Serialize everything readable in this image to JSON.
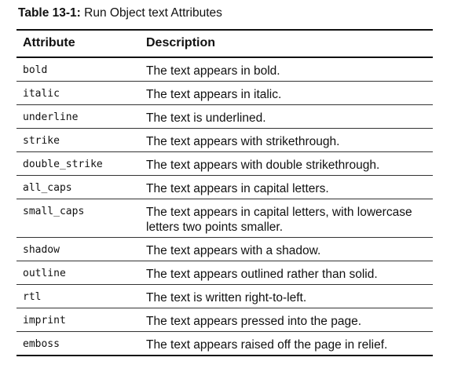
{
  "caption": {
    "number": "Table 13-1:",
    "title": "Run Object text Attributes"
  },
  "table": {
    "headers": {
      "attribute": "Attribute",
      "description": "Description"
    },
    "rows": [
      {
        "attribute": "bold",
        "description": "The text appears in bold."
      },
      {
        "attribute": "italic",
        "description": "The text appears in italic."
      },
      {
        "attribute": "underline",
        "description": "The text is underlined."
      },
      {
        "attribute": "strike",
        "description": "The text appears with strikethrough."
      },
      {
        "attribute": "double_strike",
        "description": "The text appears with double strikethrough."
      },
      {
        "attribute": "all_caps",
        "description": "The text appears in capital letters."
      },
      {
        "attribute": "small_caps",
        "description": "The text appears in capital letters, with lowercase letters two points smaller."
      },
      {
        "attribute": "shadow",
        "description": "The text appears with a shadow."
      },
      {
        "attribute": "outline",
        "description": "The text appears outlined rather than solid."
      },
      {
        "attribute": "rtl",
        "description": "The text is written right-to-left."
      },
      {
        "attribute": "imprint",
        "description": "The text appears pressed into the page."
      },
      {
        "attribute": "emboss",
        "description": "The text appears raised off the page in relief."
      }
    ]
  }
}
